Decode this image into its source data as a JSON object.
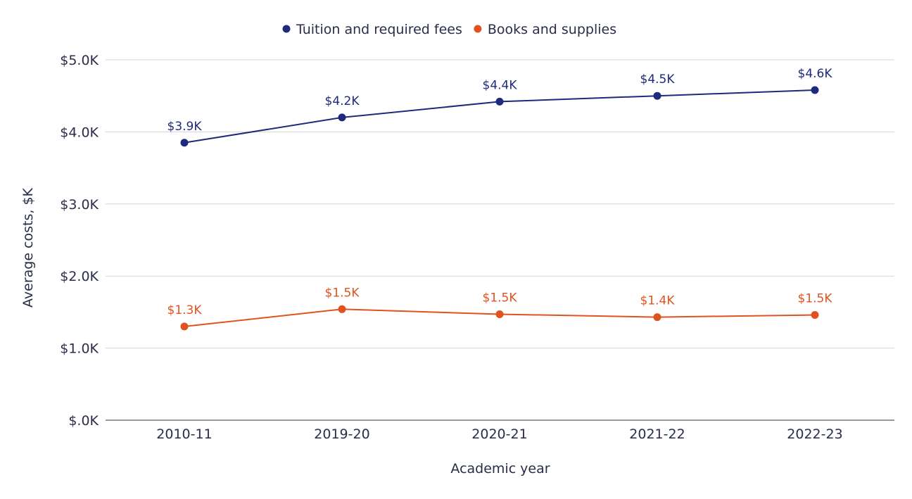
{
  "chart_data": {
    "type": "line",
    "categories": [
      "2010-11",
      "2019-20",
      "2020-21",
      "2021-22",
      "2022-23"
    ],
    "series": [
      {
        "name": "Tuition and required fees",
        "color": "#1f2a7c",
        "values": [
          3.85,
          4.2,
          4.42,
          4.5,
          4.58
        ],
        "labels": [
          "$3.9K",
          "$4.2K",
          "$4.4K",
          "$4.5K",
          "$4.6K"
        ]
      },
      {
        "name": "Books and supplies",
        "color": "#e0531f",
        "values": [
          1.3,
          1.54,
          1.47,
          1.43,
          1.46
        ],
        "labels": [
          "$1.3K",
          "$1.5K",
          "$1.5K",
          "$1.4K",
          "$1.5K"
        ]
      }
    ],
    "xlabel": "Academic year",
    "ylabel": "Average costs, $K",
    "ylim": [
      0,
      5
    ],
    "yticks": [
      0,
      1,
      2,
      3,
      4,
      5
    ],
    "ytick_labels": [
      "$.0K",
      "$1.0K",
      "$2.0K",
      "$3.0K",
      "$4.0K",
      "$5.0K"
    ],
    "grid": true,
    "legend_position": "top-center"
  }
}
